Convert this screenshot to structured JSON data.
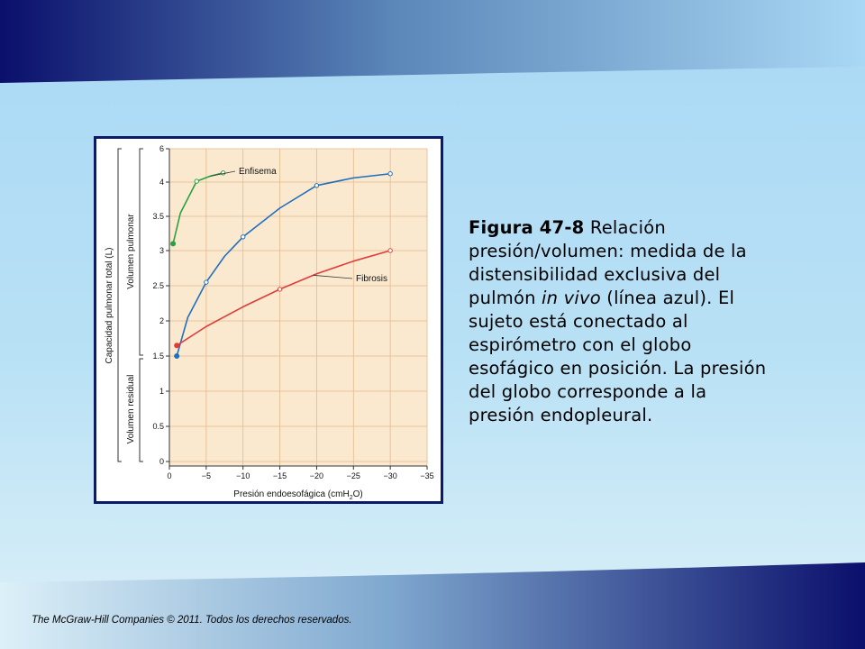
{
  "caption": {
    "label": "Figura 47-8",
    "text_before": " Relación presión/volumen: medida de la distensibilidad exclusiva del pulmón ",
    "italic": "in vivo",
    "text_after": " (línea azul). El sujeto está conectado al espirómetro con el globo esofágico en posición. La presión del globo corresponde a la presión endopleural."
  },
  "footer": {
    "text": "The McGraw-Hill Companies © 2011. Todos los derechos reservados."
  },
  "colors": {
    "band_dark": "#0a0f6b",
    "band_light": "#a9d8f5",
    "frame": "#0d1a66",
    "plot_bg": "#fbe9cf",
    "grid": "#e5b98c",
    "enfisema": "#2aa042",
    "normal": "#1f6fbf",
    "fibrosis": "#e03c3c"
  },
  "chart_data": {
    "type": "line",
    "xlabel": "Presión endoesofágica (cmH₂O)",
    "xlabel_main": "Presión endoesofágica (cmH",
    "xlabel_sub": "2",
    "xlabel_end": "O)",
    "ylabel_outer": "Capacidad pulmonar total (L)",
    "ylabel_upper": "Volumen pulmonar",
    "ylabel_lower": "Volumen residual",
    "xlim": [
      0,
      -35
    ],
    "ylim": [
      0,
      6
    ],
    "x_ticks": [
      0,
      -5,
      -10,
      -15,
      -20,
      -25,
      -30,
      -35
    ],
    "x_tick_labels": [
      "0",
      "−5",
      "−10",
      "−15",
      "−20",
      "−25",
      "−30",
      "−35"
    ],
    "y_tick_values": [
      0,
      0.5,
      1,
      1.5,
      2,
      2.5,
      3,
      3.5,
      4,
      6
    ],
    "y_tick_labels": [
      "0",
      "0.5",
      "1",
      "1.5",
      "2",
      "2.5",
      "3",
      "3.5",
      "4",
      "6"
    ],
    "grid": true,
    "series": [
      {
        "name": "Enfisema",
        "color_key": "enfisema",
        "points": [
          [
            -0.5,
            3.1
          ],
          [
            -1.5,
            3.55
          ],
          [
            -3.7,
            4.05
          ],
          [
            -5.5,
            4.35
          ],
          [
            -7.3,
            4.55
          ]
        ],
        "markers": [
          [
            -0.5,
            3.1
          ],
          [
            -3.7,
            4.05
          ],
          [
            -7.3,
            4.55
          ]
        ]
      },
      {
        "name": "",
        "color_key": "normal",
        "points": [
          [
            -1,
            1.5
          ],
          [
            -2.5,
            2.05
          ],
          [
            -5,
            2.55
          ],
          [
            -7.5,
            2.92
          ],
          [
            -10,
            3.2
          ],
          [
            -15,
            3.62
          ],
          [
            -20,
            3.95
          ],
          [
            -25,
            4.25
          ],
          [
            -30,
            4.5
          ]
        ],
        "markers": [
          [
            -1,
            1.5
          ],
          [
            -5,
            2.55
          ],
          [
            -10,
            3.2
          ],
          [
            -20,
            3.95
          ],
          [
            -30,
            4.5
          ]
        ]
      },
      {
        "name": "Fibrosis",
        "color_key": "fibrosis",
        "points": [
          [
            -1,
            1.65
          ],
          [
            -5,
            1.92
          ],
          [
            -10,
            2.2
          ],
          [
            -15,
            2.45
          ],
          [
            -20,
            2.67
          ],
          [
            -25,
            2.85
          ],
          [
            -30,
            3.0
          ]
        ],
        "markers": [
          [
            -1,
            1.65
          ],
          [
            -15,
            2.45
          ],
          [
            -30,
            3.0
          ]
        ]
      }
    ]
  }
}
